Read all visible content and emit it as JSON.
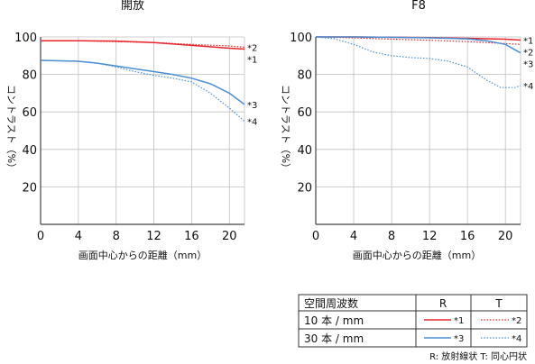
{
  "chart_data": [
    {
      "type": "line",
      "title": "開放",
      "xlabel": "画面中心からの距離（mm）",
      "ylabel": "コントラスト（%）",
      "xlim": [
        0,
        21.6
      ],
      "ylim": [
        0,
        100
      ],
      "xticks": [
        0,
        4,
        8,
        12,
        16,
        20
      ],
      "yticks": [
        20,
        40,
        60,
        80,
        100
      ],
      "grid": true,
      "series": [
        {
          "key": "r10",
          "color": "#e8262b",
          "dash": "solid",
          "points": [
            [
              0,
              98
            ],
            [
              4,
              98
            ],
            [
              8,
              97.8
            ],
            [
              12,
              97
            ],
            [
              16,
              95.5
            ],
            [
              20,
              94
            ],
            [
              21.6,
              93.5
            ]
          ]
        },
        {
          "key": "t10",
          "color": "#e8262b",
          "dash": "dotted",
          "points": [
            [
              0,
              98
            ],
            [
              4,
              98
            ],
            [
              8,
              97.5
            ],
            [
              12,
              97
            ],
            [
              16,
              96
            ],
            [
              20,
              95.2
            ],
            [
              21.6,
              94.5
            ]
          ]
        },
        {
          "key": "r30",
          "color": "#4a8fd4",
          "dash": "solid",
          "points": [
            [
              0,
              87.5
            ],
            [
              4,
              87
            ],
            [
              6,
              86
            ],
            [
              8,
              84.5
            ],
            [
              10,
              83
            ],
            [
              12,
              81.5
            ],
            [
              14,
              80
            ],
            [
              16,
              78
            ],
            [
              18,
              75
            ],
            [
              20,
              70
            ],
            [
              21.6,
              64
            ]
          ]
        },
        {
          "key": "t30",
          "color": "#4a8fd4",
          "dash": "dotted",
          "points": [
            [
              0,
              87.5
            ],
            [
              4,
              87
            ],
            [
              6,
              86
            ],
            [
              8,
              84
            ],
            [
              10,
              81.5
            ],
            [
              12,
              79.5
            ],
            [
              14,
              78
            ],
            [
              16,
              76
            ],
            [
              18,
              70
            ],
            [
              20,
              62
            ],
            [
              21.6,
              55
            ]
          ]
        }
      ],
      "curve_labels": [
        "*1",
        "*2",
        "*3",
        "*4"
      ]
    },
    {
      "type": "line",
      "title": "F8",
      "xlabel": "画面中心からの距離（mm）",
      "ylabel": "コントラスト（%）",
      "xlim": [
        0,
        21.6
      ],
      "ylim": [
        0,
        100
      ],
      "xticks": [
        0,
        4,
        8,
        12,
        16,
        20
      ],
      "yticks": [
        20,
        40,
        60,
        80,
        100
      ],
      "grid": true,
      "series": [
        {
          "key": "r10",
          "color": "#e8262b",
          "dash": "solid",
          "points": [
            [
              0,
              100
            ],
            [
              4,
              100
            ],
            [
              8,
              99.8
            ],
            [
              12,
              99.6
            ],
            [
              16,
              99.3
            ],
            [
              20,
              98.8
            ],
            [
              21.6,
              98.3
            ]
          ]
        },
        {
          "key": "t10",
          "color": "#e8262b",
          "dash": "dotted",
          "points": [
            [
              0,
              100
            ],
            [
              4,
              99.5
            ],
            [
              8,
              98.8
            ],
            [
              12,
              98.2
            ],
            [
              16,
              97.5
            ],
            [
              20,
              96.5
            ],
            [
              21.6,
              96
            ]
          ]
        },
        {
          "key": "r30",
          "color": "#4a8fd4",
          "dash": "solid",
          "points": [
            [
              0,
              100
            ],
            [
              4,
              100
            ],
            [
              8,
              99.8
            ],
            [
              12,
              99.5
            ],
            [
              16,
              99
            ],
            [
              18,
              98
            ],
            [
              20,
              96
            ],
            [
              21.6,
              91.5
            ]
          ]
        },
        {
          "key": "t30",
          "color": "#4a8fd4",
          "dash": "dotted",
          "points": [
            [
              0,
              100
            ],
            [
              2,
              99
            ],
            [
              4,
              96
            ],
            [
              6,
              92
            ],
            [
              8,
              90
            ],
            [
              10,
              89
            ],
            [
              12,
              88.5
            ],
            [
              14,
              87
            ],
            [
              16,
              84
            ],
            [
              18,
              77
            ],
            [
              19.5,
              73
            ],
            [
              21,
              73
            ],
            [
              21.6,
              74
            ]
          ]
        }
      ],
      "curve_labels": [
        "*1",
        "*2",
        "*3",
        "*4"
      ]
    }
  ],
  "legend": {
    "header": [
      "空間周波数",
      "R",
      "T"
    ],
    "rows": [
      {
        "label": "10 本 / mm",
        "r_mark": "*1",
        "t_mark": "*2",
        "color": "#e8262b"
      },
      {
        "label": "30 本 / mm",
        "r_mark": "*3",
        "t_mark": "*4",
        "color": "#4a8fd4"
      }
    ]
  },
  "footnote": "R: 放射線状  T: 同心円状"
}
